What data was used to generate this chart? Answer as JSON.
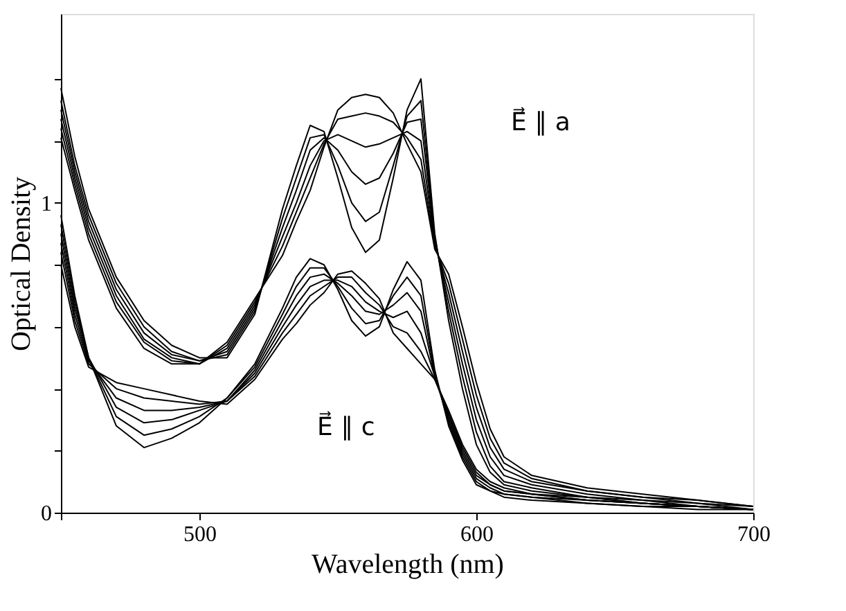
{
  "chart_data": {
    "type": "line",
    "xlabel": "Wavelength (nm)",
    "ylabel": "Optical Density",
    "xlim": [
      450,
      700
    ],
    "xticks": [
      {
        "value": 450,
        "label": null
      },
      500,
      600,
      700
    ],
    "ylim": [
      0,
      1.61
    ],
    "yticks": [
      0,
      {
        "value": 0.2,
        "label": null
      },
      {
        "value": 0.4,
        "label": null
      },
      {
        "value": 0.6,
        "label": null
      },
      {
        "value": 0.8,
        "label": null
      },
      1,
      {
        "value": 1.2,
        "label": null
      },
      {
        "value": 1.4,
        "label": null
      }
    ],
    "grid": false,
    "legend": false,
    "marker": "none",
    "line_style": "solid",
    "annotations": [
      "E⃗ ∥ a",
      "E⃗ ∥ c"
    ],
    "x": [
      450,
      455,
      460,
      470,
      480,
      490,
      500,
      510,
      520,
      530,
      535,
      540,
      545,
      550,
      555,
      560,
      565,
      570,
      575,
      580,
      585,
      590,
      595,
      600,
      605,
      610,
      620,
      640,
      660,
      680,
      700
    ],
    "series": [
      {
        "color": "#000000",
        "values": [
          1.37,
          1.15,
          0.98,
          0.76,
          0.62,
          0.54,
          0.5,
          0.5,
          0.64,
          0.98,
          1.12,
          1.25,
          1.23,
          1.08,
          0.92,
          0.84,
          0.88,
          1.08,
          1.3,
          1.4,
          0.9,
          0.62,
          0.4,
          0.22,
          0.13,
          0.09,
          0.07,
          0.05,
          0.03,
          0.02,
          0.01
        ]
      },
      {
        "color": "#000000",
        "values": [
          1.33,
          1.12,
          0.96,
          0.74,
          0.6,
          0.52,
          0.49,
          0.51,
          0.65,
          0.95,
          1.08,
          1.21,
          1.22,
          1.12,
          1.0,
          0.94,
          0.97,
          1.12,
          1.28,
          1.33,
          0.89,
          0.65,
          0.44,
          0.26,
          0.15,
          0.1,
          0.08,
          0.05,
          0.04,
          0.02,
          0.01
        ]
      },
      {
        "color": "#000000",
        "values": [
          1.3,
          1.1,
          0.94,
          0.72,
          0.58,
          0.51,
          0.49,
          0.52,
          0.66,
          0.92,
          1.04,
          1.17,
          1.21,
          1.17,
          1.1,
          1.06,
          1.08,
          1.16,
          1.26,
          1.27,
          0.88,
          0.68,
          0.48,
          0.3,
          0.18,
          0.12,
          0.09,
          0.06,
          0.04,
          0.03,
          0.01
        ]
      },
      {
        "color": "#000000",
        "values": [
          1.27,
          1.08,
          0.92,
          0.7,
          0.56,
          0.5,
          0.48,
          0.53,
          0.67,
          0.89,
          1.0,
          1.12,
          1.2,
          1.22,
          1.2,
          1.18,
          1.19,
          1.21,
          1.23,
          1.2,
          0.87,
          0.71,
          0.52,
          0.34,
          0.21,
          0.14,
          0.1,
          0.07,
          0.05,
          0.03,
          0.02
        ]
      },
      {
        "color": "#000000",
        "values": [
          1.24,
          1.06,
          0.9,
          0.68,
          0.55,
          0.49,
          0.48,
          0.54,
          0.68,
          0.86,
          0.97,
          1.08,
          1.19,
          1.27,
          1.28,
          1.29,
          1.28,
          1.26,
          1.21,
          1.14,
          0.86,
          0.74,
          0.56,
          0.38,
          0.24,
          0.16,
          0.11,
          0.07,
          0.05,
          0.04,
          0.02
        ]
      },
      {
        "color": "#000000",
        "values": [
          1.21,
          1.04,
          0.88,
          0.66,
          0.53,
          0.48,
          0.48,
          0.55,
          0.69,
          0.83,
          0.94,
          1.04,
          1.18,
          1.3,
          1.34,
          1.35,
          1.34,
          1.29,
          1.19,
          1.1,
          0.85,
          0.77,
          0.6,
          0.42,
          0.27,
          0.18,
          0.12,
          0.08,
          0.06,
          0.04,
          0.02
        ]
      },
      {
        "color": "#000000",
        "values": [
          0.96,
          0.7,
          0.5,
          0.28,
          0.21,
          0.24,
          0.29,
          0.37,
          0.48,
          0.66,
          0.76,
          0.82,
          0.8,
          0.72,
          0.62,
          0.57,
          0.6,
          0.72,
          0.81,
          0.75,
          0.46,
          0.28,
          0.17,
          0.09,
          0.07,
          0.05,
          0.04,
          0.03,
          0.02,
          0.01,
          0.01
        ]
      },
      {
        "color": "#000000",
        "values": [
          0.93,
          0.68,
          0.5,
          0.31,
          0.25,
          0.27,
          0.31,
          0.37,
          0.47,
          0.64,
          0.73,
          0.79,
          0.79,
          0.73,
          0.66,
          0.61,
          0.62,
          0.7,
          0.76,
          0.7,
          0.45,
          0.29,
          0.18,
          0.1,
          0.07,
          0.06,
          0.05,
          0.03,
          0.02,
          0.02,
          0.01
        ]
      },
      {
        "color": "#000000",
        "values": [
          0.9,
          0.66,
          0.5,
          0.34,
          0.29,
          0.3,
          0.33,
          0.36,
          0.46,
          0.62,
          0.7,
          0.76,
          0.77,
          0.74,
          0.7,
          0.65,
          0.64,
          0.67,
          0.71,
          0.65,
          0.44,
          0.3,
          0.19,
          0.11,
          0.08,
          0.06,
          0.05,
          0.04,
          0.03,
          0.02,
          0.01
        ]
      },
      {
        "color": "#000000",
        "values": [
          0.87,
          0.64,
          0.49,
          0.37,
          0.33,
          0.33,
          0.34,
          0.36,
          0.45,
          0.6,
          0.67,
          0.73,
          0.75,
          0.75,
          0.73,
          0.68,
          0.65,
          0.63,
          0.65,
          0.58,
          0.44,
          0.31,
          0.2,
          0.12,
          0.09,
          0.07,
          0.06,
          0.04,
          0.03,
          0.02,
          0.01
        ]
      },
      {
        "color": "#000000",
        "values": [
          0.84,
          0.62,
          0.48,
          0.4,
          0.37,
          0.36,
          0.35,
          0.36,
          0.44,
          0.58,
          0.64,
          0.7,
          0.73,
          0.76,
          0.76,
          0.71,
          0.67,
          0.6,
          0.58,
          0.52,
          0.43,
          0.32,
          0.21,
          0.13,
          0.09,
          0.07,
          0.06,
          0.04,
          0.03,
          0.02,
          0.01
        ]
      },
      {
        "color": "#000000",
        "values": [
          0.8,
          0.6,
          0.47,
          0.42,
          0.4,
          0.38,
          0.36,
          0.35,
          0.43,
          0.56,
          0.61,
          0.67,
          0.71,
          0.77,
          0.78,
          0.74,
          0.69,
          0.58,
          0.53,
          0.48,
          0.43,
          0.33,
          0.22,
          0.14,
          0.1,
          0.08,
          0.06,
          0.05,
          0.03,
          0.02,
          0.01
        ]
      }
    ]
  }
}
